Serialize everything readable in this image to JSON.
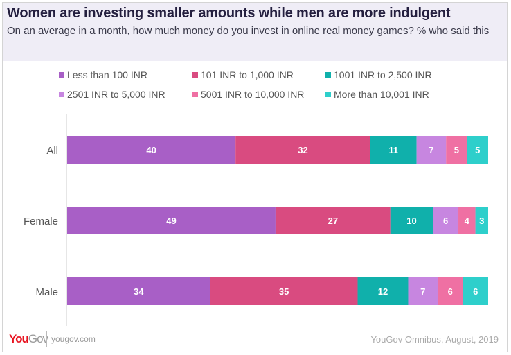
{
  "chart_data": {
    "type": "bar",
    "orientation": "horizontal",
    "stacked": true,
    "title": "Women are investing smaller amounts while men are more indulgent",
    "subtitle": "On an average in a month, how much money do you invest in online real money games? % who said this",
    "categories": [
      "All",
      "Female",
      "Male"
    ],
    "series": [
      {
        "name": "Less than 100 INR",
        "color": "#a85fc6",
        "values": [
          40,
          49,
          34
        ]
      },
      {
        "name": "101 INR to 1,000 INR",
        "color": "#d94b80",
        "values": [
          32,
          27,
          35
        ]
      },
      {
        "name": "1001 INR to 2,500 INR",
        "color": "#10b0ab",
        "values": [
          11,
          10,
          12
        ]
      },
      {
        "name": "2501 INR to 5,000 INR",
        "color": "#c786e0",
        "values": [
          7,
          6,
          7
        ]
      },
      {
        "name": "5001 INR to 10,000 INR",
        "color": "#ef70a3",
        "values": [
          5,
          4,
          6
        ]
      },
      {
        "name": "More than 10,001 INR",
        "color": "#2ecfcb",
        "values": [
          5,
          3,
          6
        ]
      }
    ],
    "legend_placement": "top",
    "grid": false,
    "xlim": [
      0,
      100
    ]
  },
  "footer": {
    "logo": "YouGov",
    "site": "yougov.com",
    "source": "YouGov Omnibus, August, 2019"
  }
}
